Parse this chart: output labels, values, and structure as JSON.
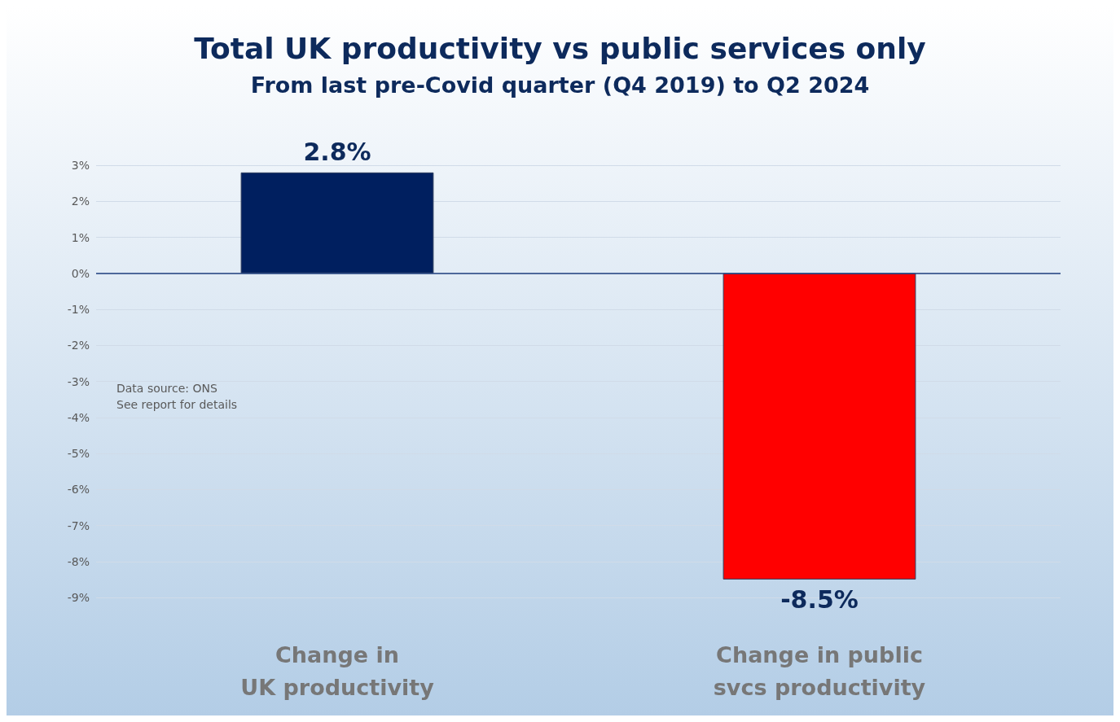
{
  "chart_data": {
    "type": "bar",
    "title": "Total UK productivity vs public services only",
    "subtitle": "From last pre-Covid quarter (Q4 2019) to Q2 2024",
    "categories": [
      "Change in\nUK productivity",
      "Change in public\nsvcs productivity"
    ],
    "values": [
      2.8,
      -8.5
    ],
    "colors": [
      "#001f5f",
      "#ff0000"
    ],
    "value_labels": [
      "2.8%",
      "-8.5%"
    ],
    "ylim": [
      -9,
      3
    ],
    "yticks": [
      {
        "value": -9,
        "label": "-9%"
      },
      {
        "value": -8,
        "label": "-8%"
      },
      {
        "value": -7,
        "label": "-7%"
      },
      {
        "value": -6,
        "label": "-6%"
      },
      {
        "value": -5,
        "label": "-5%"
      },
      {
        "value": -4,
        "label": "-4%"
      },
      {
        "value": -3,
        "label": "-3%"
      },
      {
        "value": -2,
        "label": "-2%"
      },
      {
        "value": -1,
        "label": "-1%"
      },
      {
        "value": 0,
        "label": "0%"
      },
      {
        "value": 1,
        "label": "1%"
      },
      {
        "value": 2,
        "label": "2%"
      },
      {
        "value": 3,
        "label": "3%"
      }
    ],
    "grid": "y",
    "ref_lines": [
      {
        "axis": "y",
        "value": 0,
        "color": "#1f3f7f"
      }
    ],
    "annotations": [
      "Data source: ONS",
      "See report for details"
    ]
  }
}
